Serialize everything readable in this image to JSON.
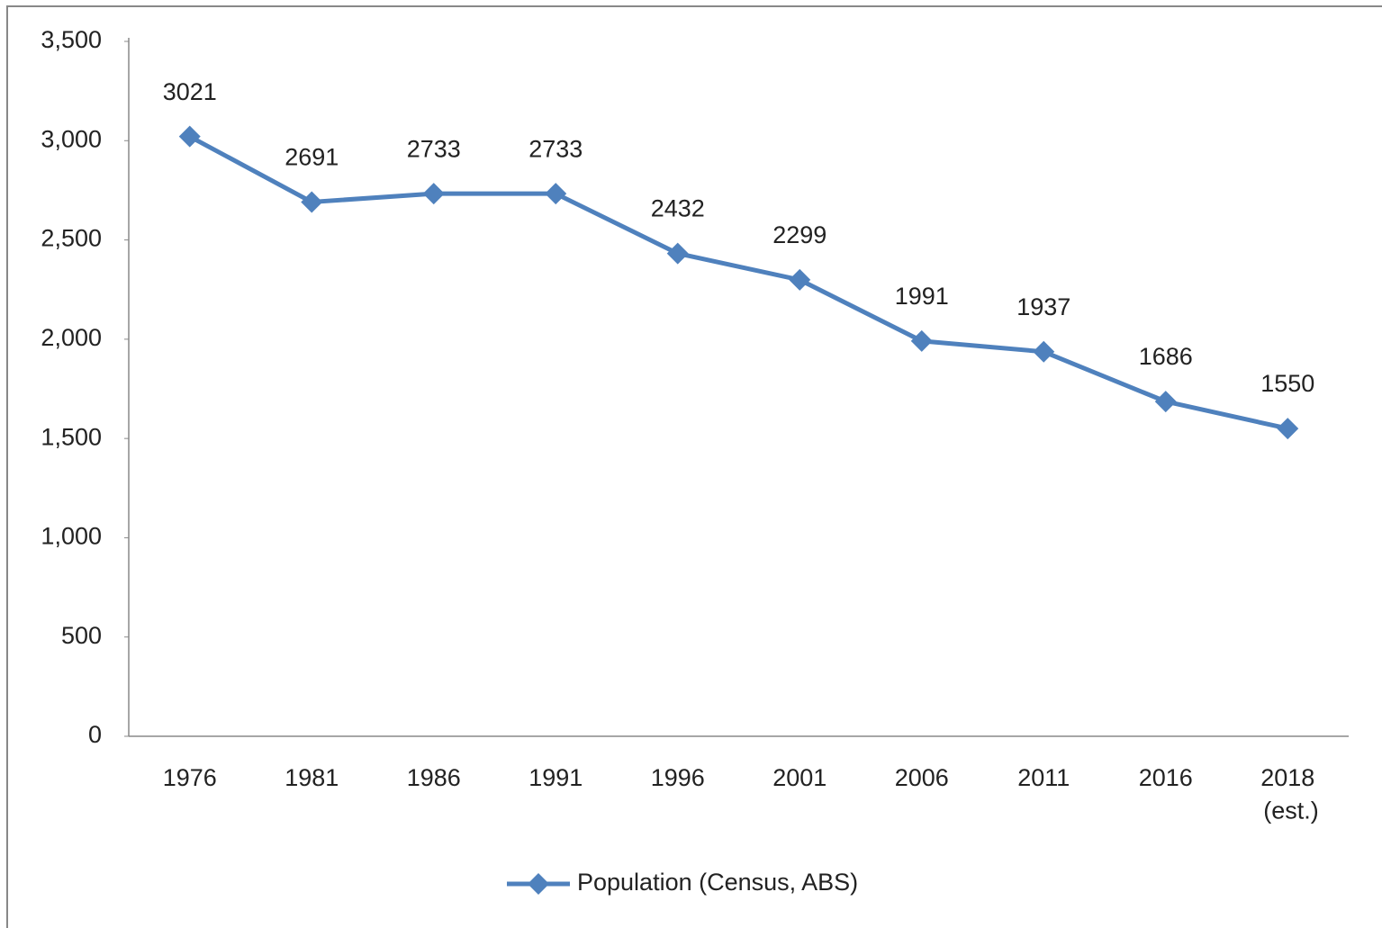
{
  "chart_data": {
    "type": "line",
    "categories": [
      "1976",
      "1981",
      "1986",
      "1991",
      "1996",
      "2001",
      "2006",
      "2011",
      "2016",
      "2018 (est.)"
    ],
    "series": [
      {
        "name": "Population (Census, ABS)",
        "color": "#4f81bd",
        "values": [
          3021,
          2691,
          2733,
          2733,
          2432,
          2299,
          1991,
          1937,
          1686,
          1550
        ]
      }
    ],
    "ylim": [
      0,
      3500
    ],
    "yticks": [
      0,
      500,
      {
        "value": 1000,
        "label": "1,000"
      },
      {
        "value": 1500,
        "label": "1,500"
      },
      {
        "value": 2000,
        "label": "2,000"
      },
      {
        "value": 2500,
        "label": "2,500"
      },
      {
        "value": 3000,
        "label": "3,000"
      },
      {
        "value": 3500,
        "label": "3,500"
      }
    ],
    "grid": false,
    "legend": "bottom",
    "data_labels": true
  }
}
